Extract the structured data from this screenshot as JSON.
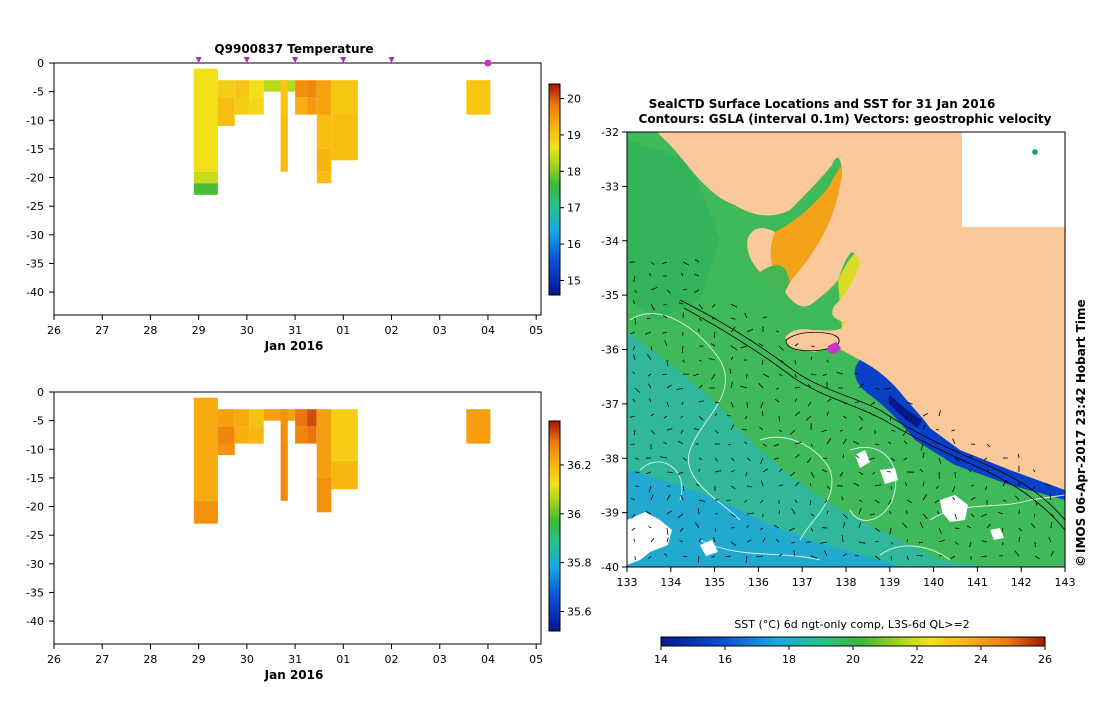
{
  "top_title": "Q9900837  Temperature",
  "date_label": "Jan 2016",
  "map_title_1": "SealCTD Surface Locations and SST for 31 Jan 2016",
  "map_title_2": "Contours: GSLA (interval 0.1m) Vectors: geostrophic velocity",
  "map_credit": "IMOS 06-Apr-2017 23:42 Hobart Time",
  "copyright_symbol": "©",
  "sst_label": "SST (°C) 6d ngt-only comp, L3S-6d QL>=2",
  "colors": {
    "land": "#fbc89a",
    "marker": "#c832c8",
    "triangle": "#b02ab0",
    "data_mid": "#f6a70c"
  },
  "chart_data": [
    {
      "type": "heatmap",
      "title": "Q9900837  Temperature",
      "xlabel": "Jan 2016",
      "x_ticks": [
        "26",
        "27",
        "28",
        "29",
        "30",
        "31",
        "01",
        "02",
        "03",
        "04",
        "05"
      ],
      "y_ticks": [
        0,
        -5,
        -10,
        -15,
        -20,
        -25,
        -30,
        -35,
        -40
      ],
      "ylim": [
        -44,
        0
      ],
      "profile_markers_day": [
        29,
        30,
        31,
        32,
        33,
        35
      ],
      "colorbar": {
        "min": 14.6,
        "max": 20.4,
        "ticks": [
          15,
          16,
          17,
          18,
          19,
          20
        ]
      },
      "profiles": [
        {
          "x0": 28.9,
          "x1": 29.4,
          "cells": [
            [
              -1,
              -19,
              18.7
            ],
            [
              -19,
              -21,
              18.4
            ],
            [
              -21,
              -23,
              17.7
            ]
          ]
        },
        {
          "x0": 29.4,
          "x1": 29.75,
          "cells": [
            [
              -3,
              -6,
              18.9
            ],
            [
              -6,
              -11,
              19.1
            ]
          ]
        },
        {
          "x0": 29.75,
          "x1": 30.05,
          "cells": [
            [
              -3,
              -6,
              19.0
            ],
            [
              -6,
              -9,
              18.9
            ]
          ]
        },
        {
          "x0": 30.05,
          "x1": 30.35,
          "cells": [
            [
              -3,
              -6,
              18.7
            ],
            [
              -6,
              -9,
              18.8
            ]
          ]
        },
        {
          "x0": 30.35,
          "x1": 31.0,
          "cells": [
            [
              -3,
              -5,
              18.3
            ]
          ]
        },
        {
          "x0": 30.7,
          "x1": 30.85,
          "cells": [
            [
              -3,
              -9,
              19.0
            ],
            [
              -9,
              -19,
              19.1
            ]
          ]
        },
        {
          "x0": 31.0,
          "x1": 31.25,
          "cells": [
            [
              -3,
              -6,
              19.6
            ],
            [
              -6,
              -9,
              19.3
            ]
          ]
        },
        {
          "x0": 31.25,
          "x1": 31.45,
          "cells": [
            [
              -3,
              -6,
              19.7
            ],
            [
              -6,
              -9,
              19.5
            ]
          ]
        },
        {
          "x0": 31.45,
          "x1": 31.75,
          "cells": [
            [
              -3,
              -9,
              19.4
            ],
            [
              -9,
              -15,
              19.1
            ],
            [
              -15,
              -19,
              19.2
            ],
            [
              -19,
              -21,
              19.1
            ]
          ]
        },
        {
          "x0": 31.75,
          "x1": 32.3,
          "cells": [
            [
              -3,
              -9,
              19.0
            ],
            [
              -9,
              -17,
              19.1
            ]
          ]
        },
        {
          "x0": 34.55,
          "x1": 35.05,
          "cells": [
            [
              -3,
              -9,
              19.0
            ]
          ]
        }
      ]
    },
    {
      "type": "heatmap",
      "title": "",
      "xlabel": "Jan 2016",
      "x_ticks": [
        "26",
        "27",
        "28",
        "29",
        "30",
        "31",
        "01",
        "02",
        "03",
        "04",
        "05"
      ],
      "y_ticks": [
        0,
        -5,
        -10,
        -15,
        -20,
        -25,
        -30,
        -35,
        -40
      ],
      "ylim": [
        -44,
        0
      ],
      "colorbar": {
        "min": 35.52,
        "max": 36.38,
        "ticks": [
          35.6,
          35.8,
          36,
          36.2
        ]
      },
      "profiles": [
        {
          "x0": 28.9,
          "x1": 29.4,
          "cells": [
            [
              -1,
              -19,
              36.22
            ],
            [
              -19,
              -23,
              36.26
            ]
          ]
        },
        {
          "x0": 29.4,
          "x1": 29.75,
          "cells": [
            [
              -3,
              -6,
              36.24
            ],
            [
              -6,
              -9,
              36.28
            ],
            [
              -9,
              -11,
              36.26
            ]
          ]
        },
        {
          "x0": 29.75,
          "x1": 30.05,
          "cells": [
            [
              -3,
              -6,
              36.22
            ],
            [
              -6,
              -9,
              36.21
            ]
          ]
        },
        {
          "x0": 30.05,
          "x1": 30.35,
          "cells": [
            [
              -3,
              -6,
              36.18
            ],
            [
              -6,
              -9,
              36.2
            ]
          ]
        },
        {
          "x0": 30.35,
          "x1": 31.0,
          "cells": [
            [
              -3,
              -5,
              36.24
            ]
          ]
        },
        {
          "x0": 30.7,
          "x1": 30.85,
          "cells": [
            [
              -3,
              -9,
              36.26
            ],
            [
              -9,
              -19,
              36.27
            ]
          ]
        },
        {
          "x0": 31.0,
          "x1": 31.25,
          "cells": [
            [
              -3,
              -6,
              36.3
            ],
            [
              -6,
              -9,
              36.28
            ]
          ]
        },
        {
          "x0": 31.25,
          "x1": 31.45,
          "cells": [
            [
              -3,
              -6,
              36.33
            ],
            [
              -6,
              -9,
              36.3
            ]
          ]
        },
        {
          "x0": 31.45,
          "x1": 31.75,
          "cells": [
            [
              -3,
              -15,
              36.24
            ],
            [
              -15,
              -21,
              36.26
            ]
          ]
        },
        {
          "x0": 31.75,
          "x1": 32.3,
          "cells": [
            [
              -3,
              -12,
              36.16
            ],
            [
              -12,
              -17,
              36.2
            ]
          ]
        },
        {
          "x0": 34.55,
          "x1": 35.05,
          "cells": [
            [
              -3,
              -9,
              36.24
            ]
          ]
        }
      ]
    },
    {
      "type": "heatmap",
      "title": "SealCTD Surface Locations and SST for 31 Jan 2016",
      "x_ticks": [
        "133",
        "134",
        "135",
        "136",
        "137",
        "138",
        "139",
        "140",
        "141",
        "142",
        "143"
      ],
      "y_ticks": [
        "-32",
        "-33",
        "-34",
        "-35",
        "-36",
        "-37",
        "-38",
        "-39",
        "-40"
      ],
      "xlim": [
        133,
        143
      ],
      "ylim": [
        -40,
        -32
      ],
      "colorbar": {
        "label": "SST (°C) 6d ngt-only comp, L3S-6d QL>=2",
        "min": 14,
        "max": 26,
        "ticks": [
          "14",
          "16",
          "18",
          "20",
          "22",
          "24",
          "26"
        ]
      },
      "ctd_location": {
        "lon": 137.7,
        "lat": -35.95
      },
      "island_marker": {
        "lon": 142.35,
        "lat": -32.35
      }
    }
  ]
}
